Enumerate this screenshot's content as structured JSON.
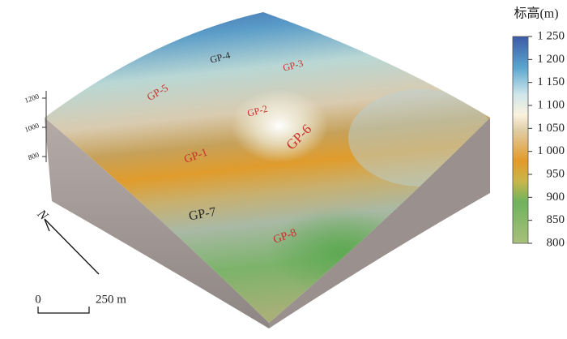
{
  "map": {
    "labels": [
      {
        "text": "GP-1",
        "color": "#c8302a"
      },
      {
        "text": "GP-2",
        "color": "#c8302a"
      },
      {
        "text": "GP-3",
        "color": "#c8302a"
      },
      {
        "text": "GP-4",
        "color": "#2a2a2a"
      },
      {
        "text": "GP-5",
        "color": "#c8302a"
      },
      {
        "text": "GP-6",
        "color": "#c8302a"
      },
      {
        "text": "GP-7",
        "color": "#2a2a2a"
      },
      {
        "text": "GP-8",
        "color": "#c8302a"
      }
    ],
    "elevation_axis": {
      "range": [
        800,
        1200
      ],
      "ticks": [
        1200,
        1000,
        800
      ]
    },
    "north": "N",
    "scale_bar": {
      "start": "0",
      "end": "250 m"
    },
    "legend": {
      "title": "标高(m)",
      "range": [
        800,
        1250
      ],
      "ticks": [
        {
          "value": 1250,
          "label": "1 250"
        },
        {
          "value": 1200,
          "label": "1 200"
        },
        {
          "value": 1150,
          "label": "1 150"
        },
        {
          "value": 1100,
          "label": "1 100"
        },
        {
          "value": 1050,
          "label": "1 050"
        },
        {
          "value": 1000,
          "label": "1 000"
        },
        950,
        900,
        850,
        800
      ]
    }
  }
}
